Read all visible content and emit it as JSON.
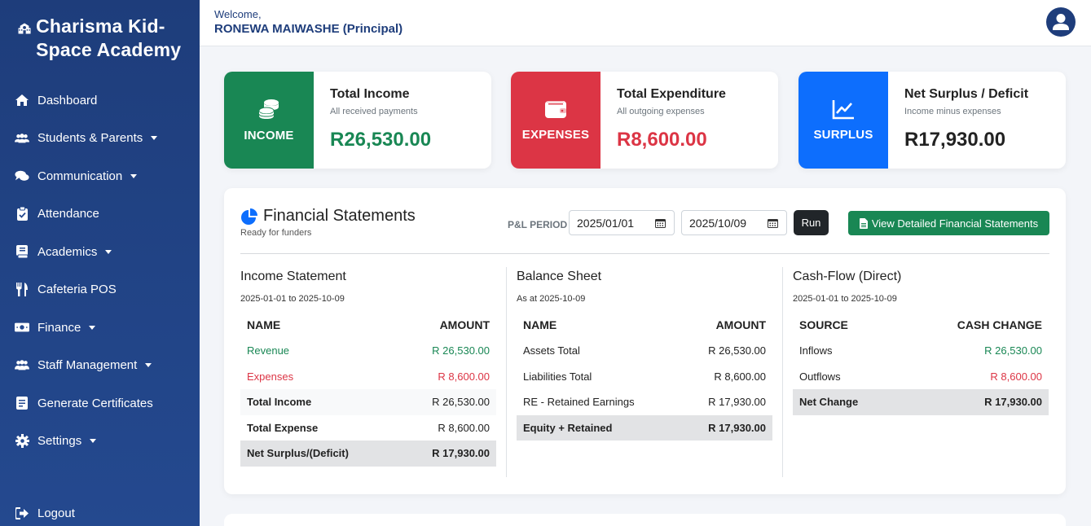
{
  "sidebar": {
    "brand": "Charisma Kid-Space Academy",
    "items": [
      {
        "label": "Dashboard",
        "icon": "home-icon"
      },
      {
        "label": "Students & Parents",
        "icon": "users-icon",
        "dropdown": true
      },
      {
        "label": "Communication",
        "icon": "comments-icon",
        "dropdown": true
      },
      {
        "label": "Attendance",
        "icon": "clipboard-icon"
      },
      {
        "label": "Academics",
        "icon": "book-icon",
        "dropdown": true
      },
      {
        "label": "Cafeteria POS",
        "icon": "utensils-icon"
      },
      {
        "label": "Finance",
        "icon": "money-icon",
        "dropdown": true
      },
      {
        "label": "Staff Management",
        "icon": "staff-icon",
        "dropdown": true
      },
      {
        "label": "Generate Certificates",
        "icon": "certificate-icon"
      },
      {
        "label": "Settings",
        "icon": "gear-icon",
        "dropdown": true
      }
    ],
    "logout": "Logout"
  },
  "header": {
    "welcome": "Welcome,",
    "user": "RONEWA MAIWASHE (Principal)"
  },
  "cards": {
    "income": {
      "tag": "INCOME",
      "title": "Total Income",
      "sub": "All received payments",
      "value": "R26,530.00",
      "color": "#198754"
    },
    "expenses": {
      "tag": "EXPENSES",
      "title": "Total Expenditure",
      "sub": "All outgoing expenses",
      "value": "R8,600.00",
      "color": "#dc3545"
    },
    "surplus": {
      "tag": "SURPLUS",
      "title": "Net Surplus / Deficit",
      "sub": "Income minus expenses",
      "value": "R17,930.00",
      "color": "#0d6efd"
    }
  },
  "financial": {
    "title": "Financial Statements",
    "subtitle": "Ready for funders",
    "period_label": "P&L PERIOD",
    "start_date": "2025/01/01",
    "end_date": "2025/10/09",
    "run_label": "Run",
    "view_label": "View Detailed Financial Statements",
    "income_statement": {
      "title": "Income Statement",
      "range": "2025-01-01 to 2025-10-09",
      "col_name": "NAME",
      "col_amount": "AMOUNT",
      "rows": [
        {
          "name": "Revenue",
          "amount": "R 26,530.00"
        },
        {
          "name": "Expenses",
          "amount": "R 8,600.00"
        },
        {
          "name": "Total Income",
          "amount": "R 26,530.00"
        },
        {
          "name": "Total Expense",
          "amount": "R 8,600.00"
        },
        {
          "name": "Net Surplus/(Deficit)",
          "amount": "R 17,930.00"
        }
      ]
    },
    "balance_sheet": {
      "title": "Balance Sheet",
      "range": "As at 2025-10-09",
      "col_name": "NAME",
      "col_amount": "AMOUNT",
      "rows": [
        {
          "name": "Assets Total",
          "amount": "R 26,530.00"
        },
        {
          "name": "Liabilities Total",
          "amount": "R 8,600.00"
        },
        {
          "name": "RE - Retained Earnings",
          "amount": "R 17,930.00"
        },
        {
          "name": "Equity + Retained",
          "amount": "R 17,930.00"
        }
      ]
    },
    "cash_flow": {
      "title": "Cash-Flow (Direct)",
      "range": "2025-01-01 to 2025-10-09",
      "col_name": "SOURCE",
      "col_amount": "CASH CHANGE",
      "rows": [
        {
          "name": "Inflows",
          "amount": "R 26,530.00"
        },
        {
          "name": "Outflows",
          "amount": "R 8,600.00"
        },
        {
          "name": "Net Change",
          "amount": "R 17,930.00"
        }
      ]
    }
  }
}
